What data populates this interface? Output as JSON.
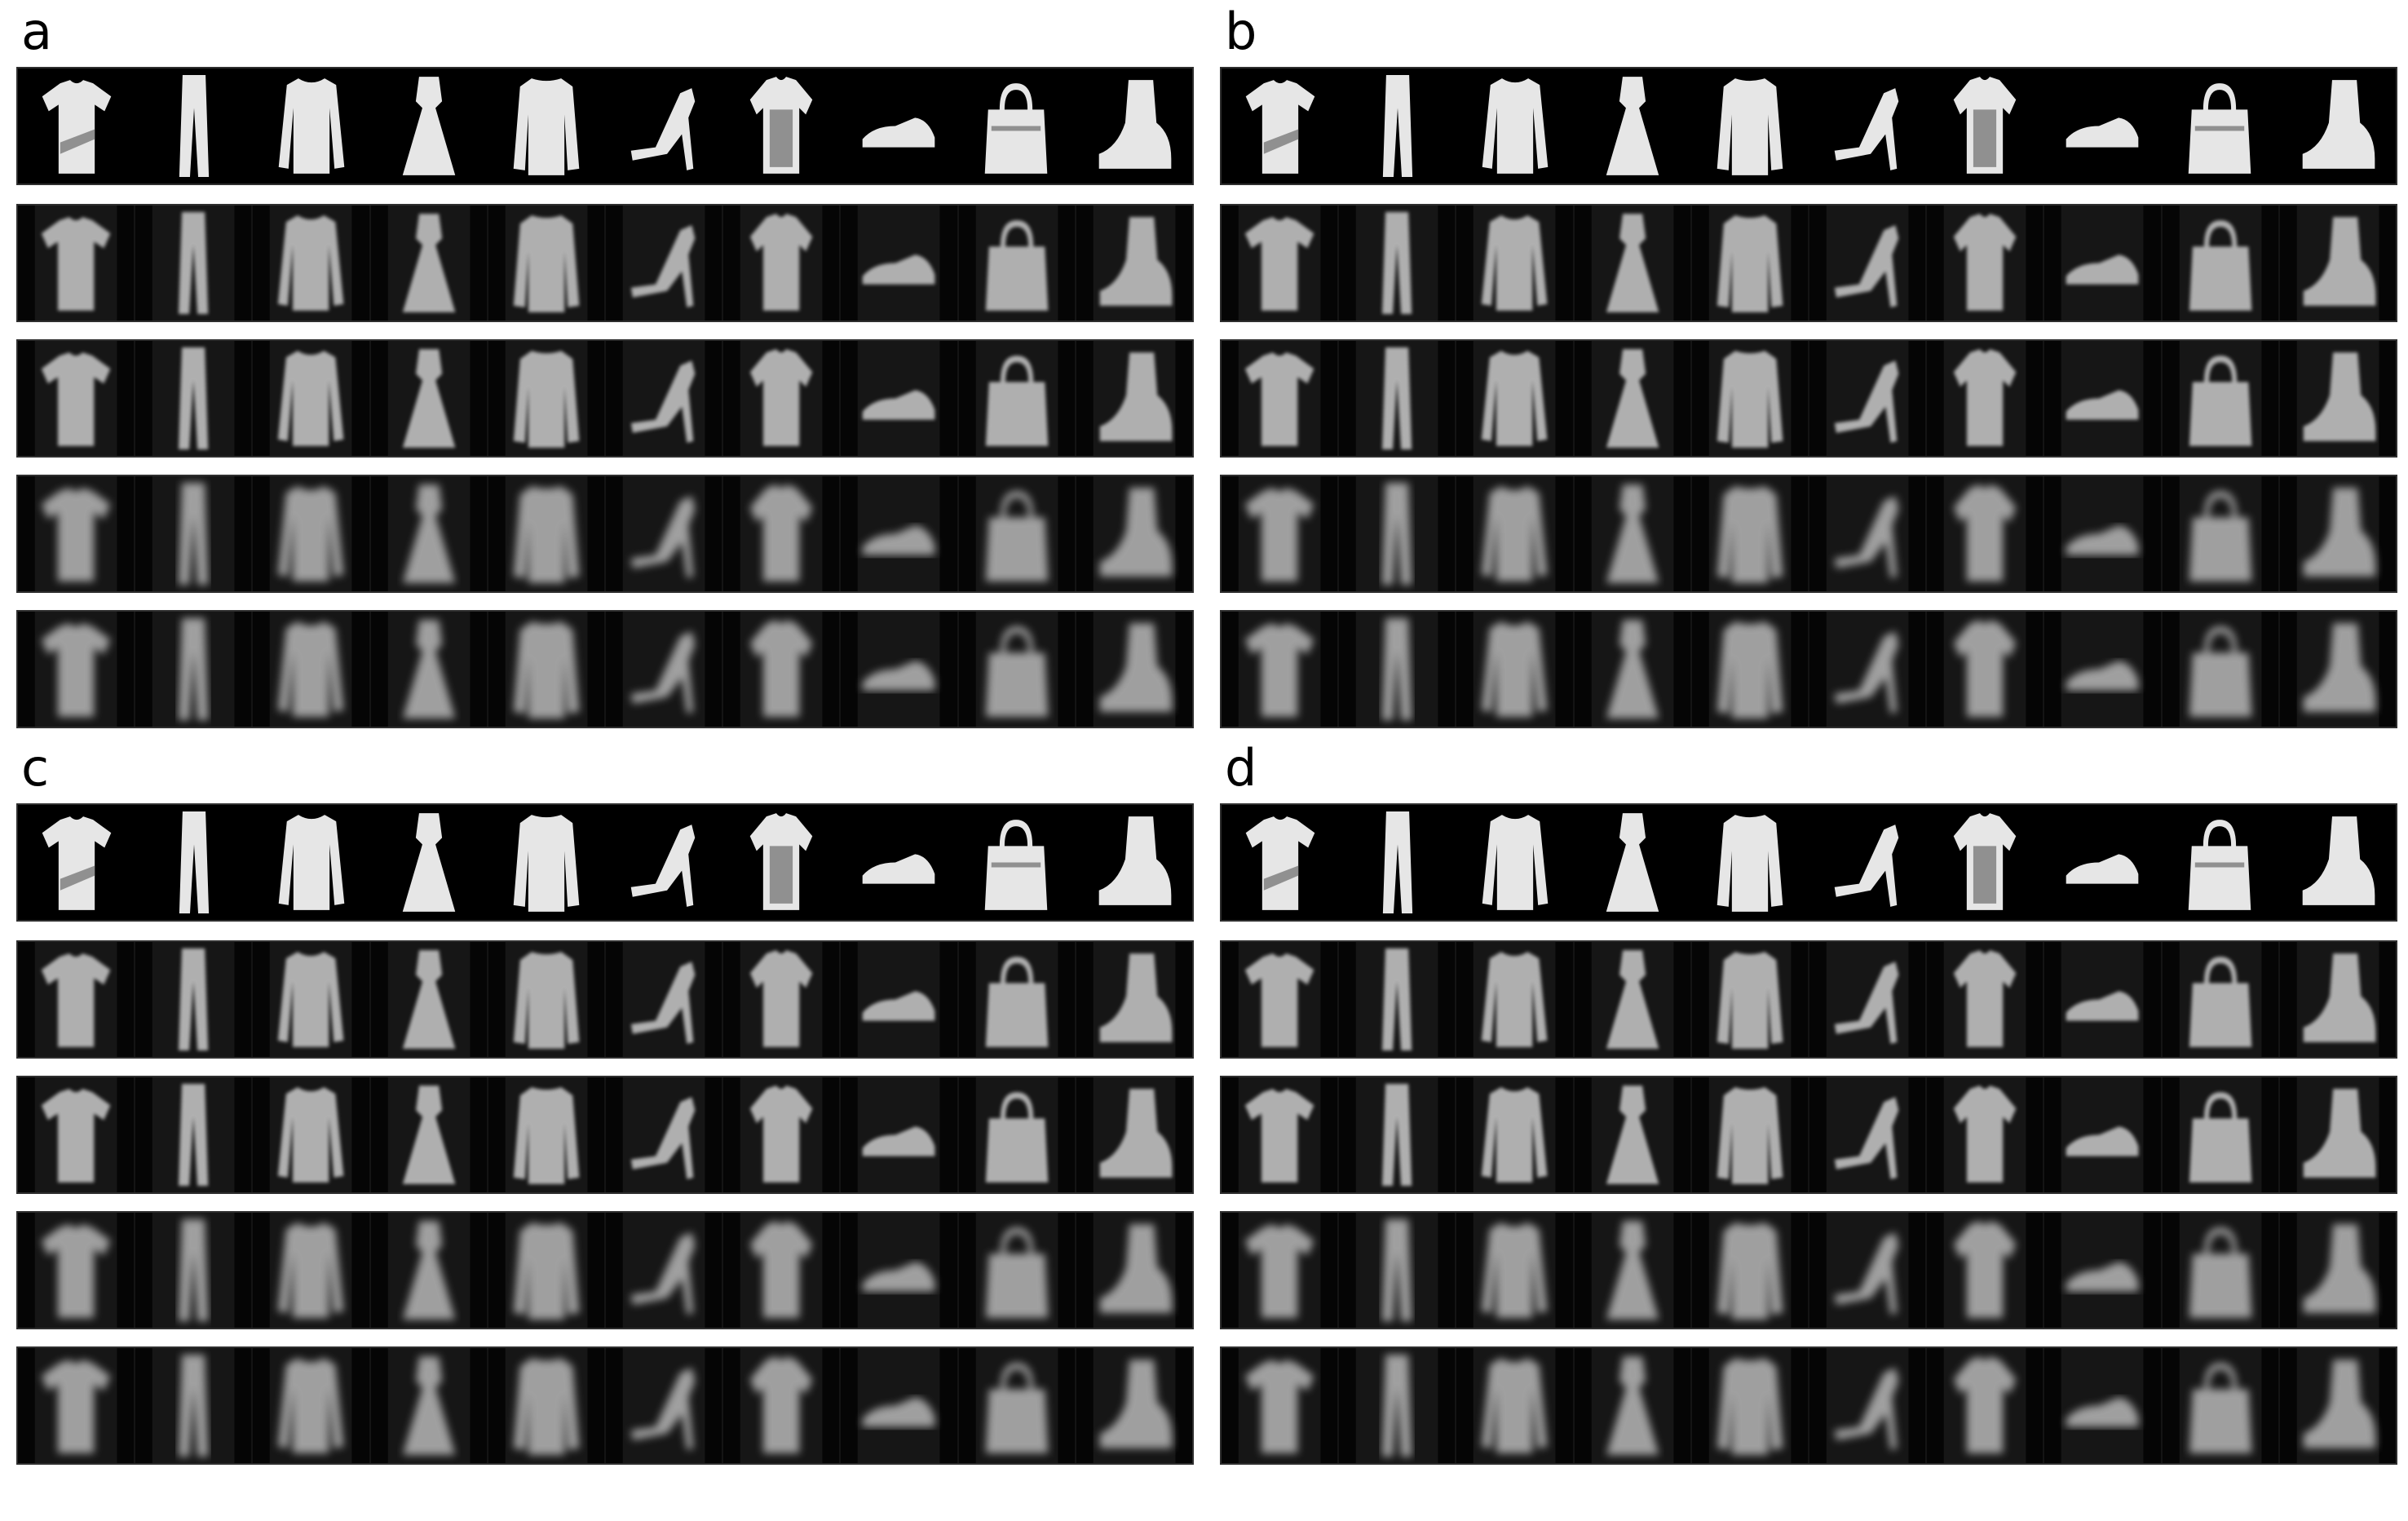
{
  "figure": {
    "panels": [
      {
        "label": "a"
      },
      {
        "label": "b"
      },
      {
        "label": "c"
      },
      {
        "label": "d"
      }
    ],
    "row_kinds": [
      "original",
      "reconstruction-sharp",
      "reconstruction-sharp",
      "reconstruction-blurry",
      "reconstruction-blurry"
    ],
    "items": [
      "tshirt",
      "trouser",
      "pullover",
      "dress",
      "coat",
      "sandal",
      "shirt",
      "sneaker",
      "bag",
      "ankle-boot"
    ],
    "colors": {
      "background": "#000000",
      "row_border": "#2e2e2e",
      "cell_divider": "#141414"
    }
  }
}
